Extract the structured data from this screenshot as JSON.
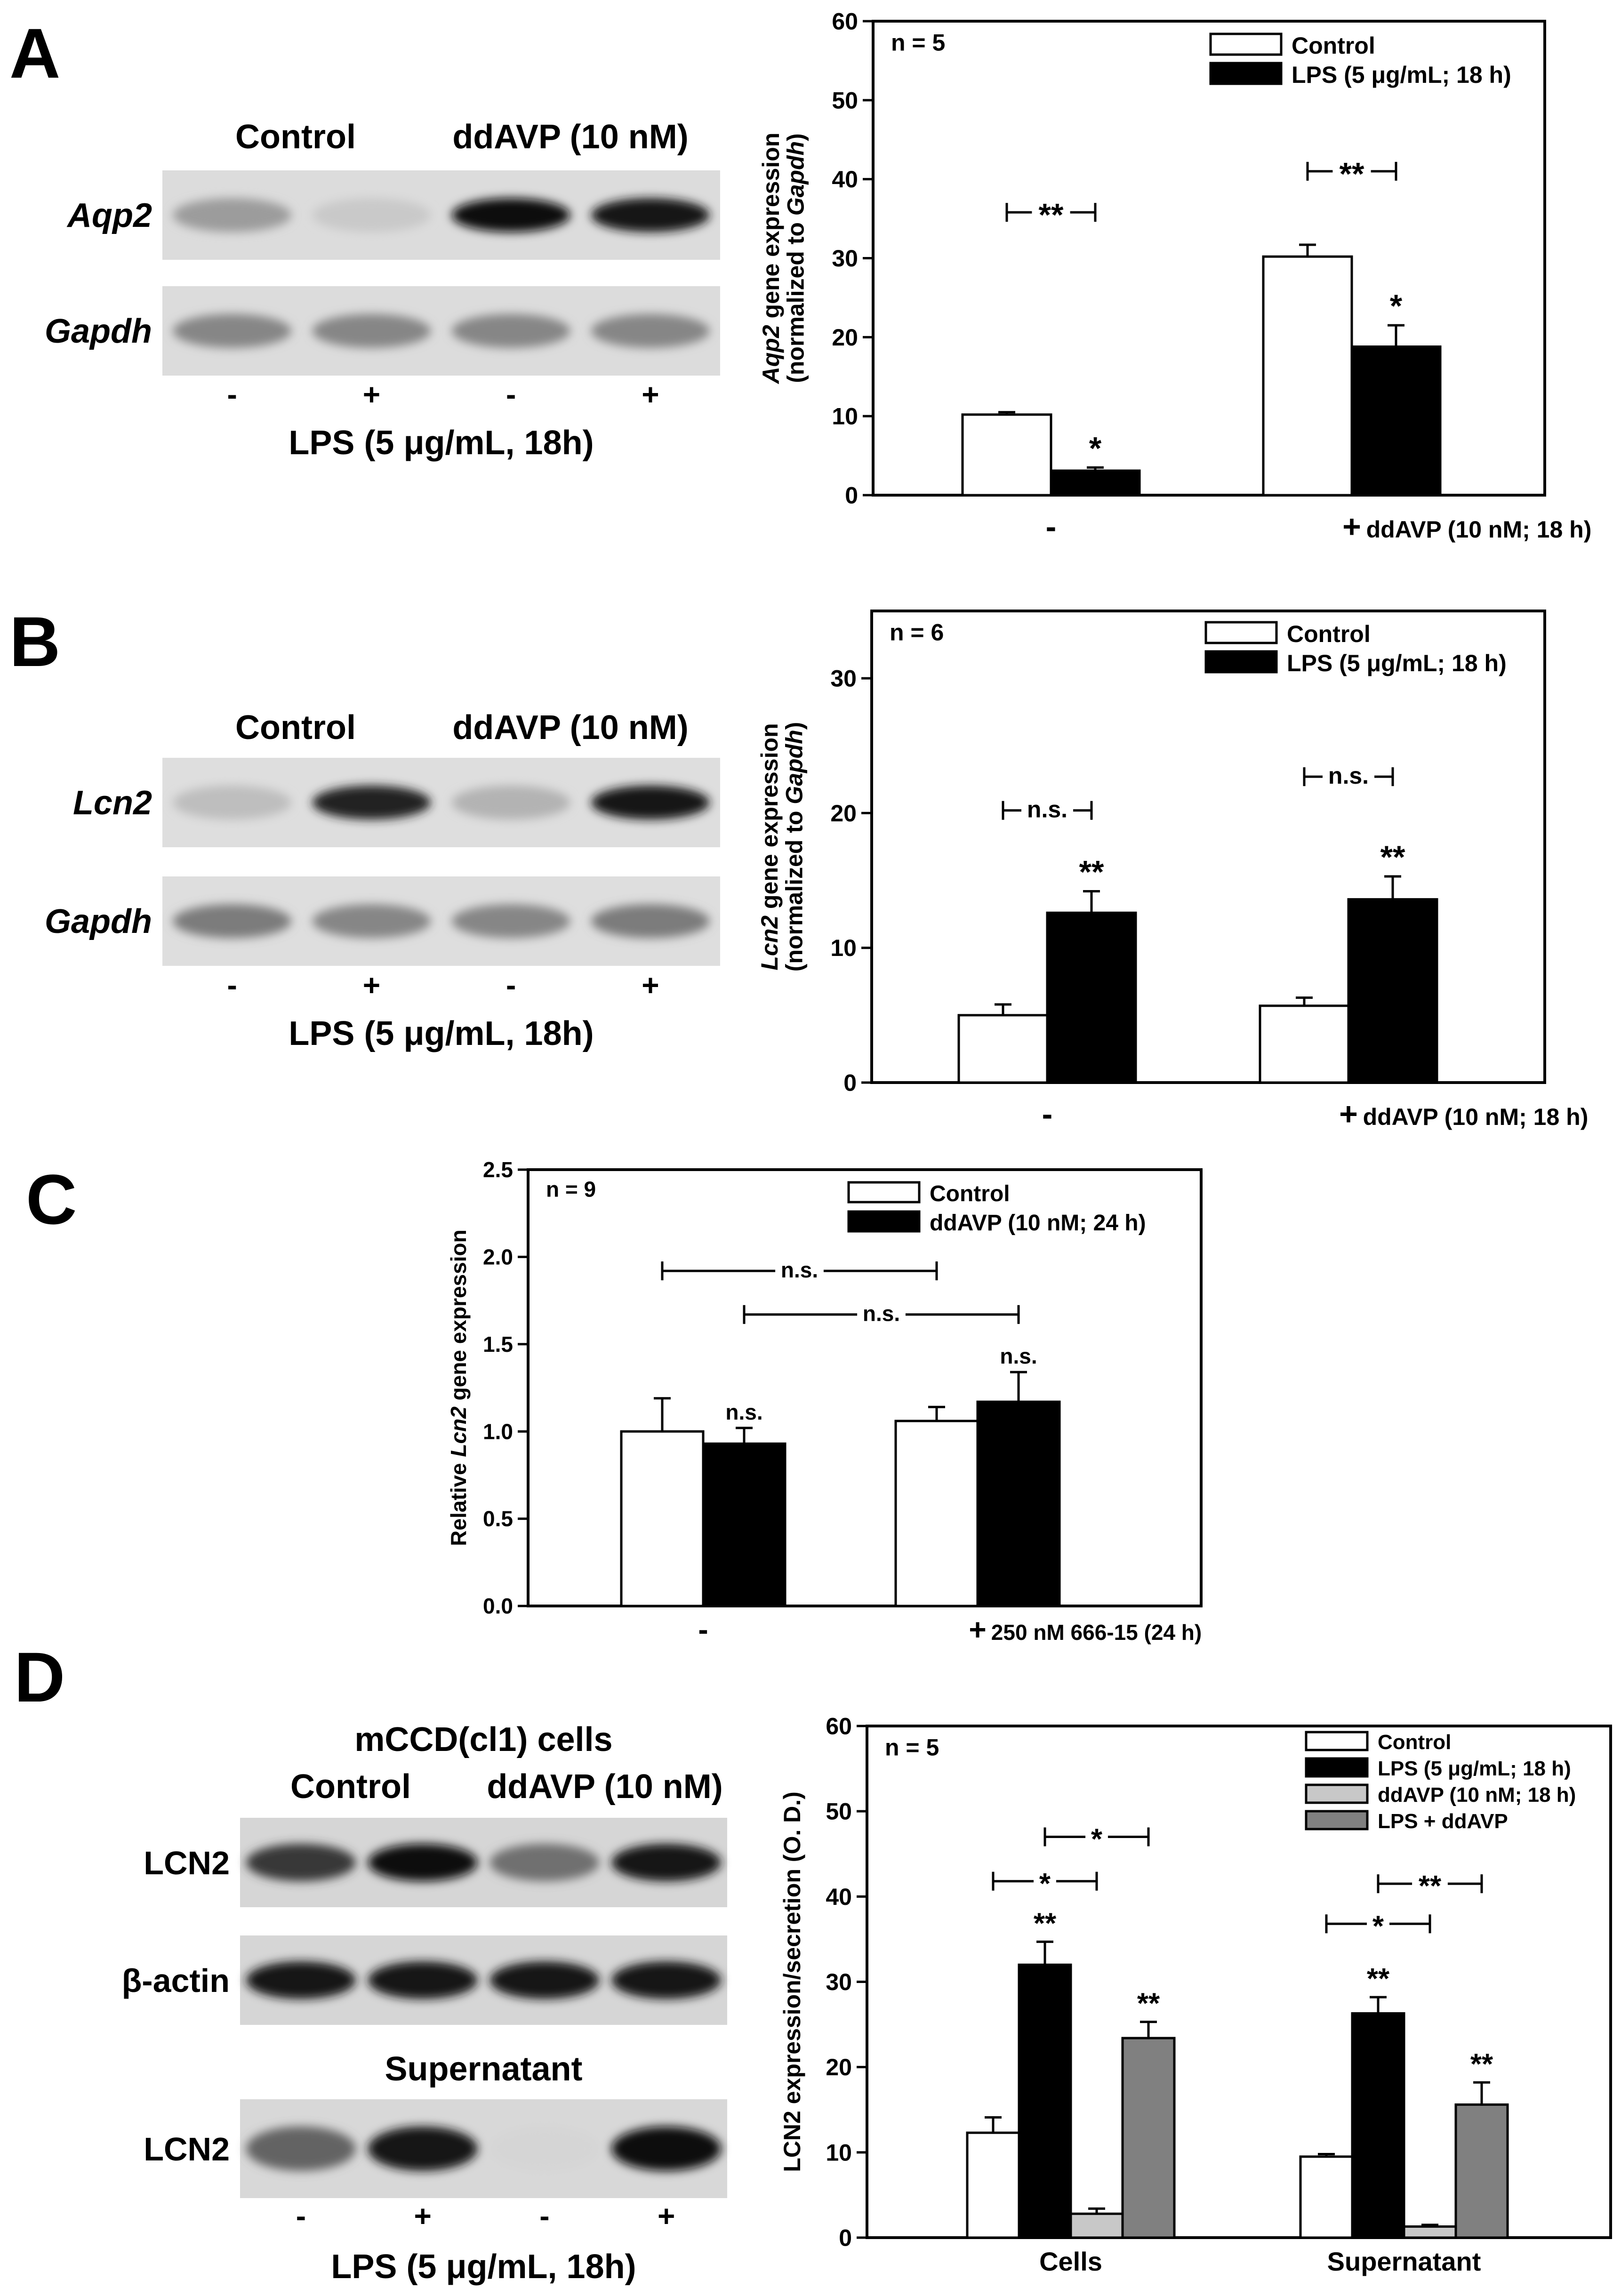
{
  "panels": [
    {
      "letter": "A",
      "gel": {
        "groups": [
          "Control",
          "ddAVP (10 nM)"
        ],
        "lanes": [
          {
            "sign": "-"
          },
          {
            "sign": "+"
          },
          {
            "sign": "-"
          },
          {
            "sign": "+"
          }
        ],
        "rows": [
          {
            "label": "Aqp2",
            "italic": true,
            "intensity": [
              0.35,
              0.15,
              1.0,
              0.95
            ]
          },
          {
            "label": "Gapdh",
            "italic": true,
            "intensity": [
              0.45,
              0.45,
              0.45,
              0.45
            ]
          }
        ],
        "axis_label": "LPS (5 μg/mL, 18h)"
      }
    },
    {
      "letter": "B",
      "gel": {
        "groups": [
          "Control",
          "ddAVP (10 nM)"
        ],
        "lanes": [
          {
            "sign": "-"
          },
          {
            "sign": "+"
          },
          {
            "sign": "-"
          },
          {
            "sign": "+"
          }
        ],
        "rows": [
          {
            "label": "Lcn2",
            "italic": true,
            "intensity": [
              0.2,
              0.9,
              0.25,
              0.95
            ]
          },
          {
            "label": "Gapdh",
            "italic": true,
            "intensity": [
              0.5,
              0.45,
              0.45,
              0.5
            ]
          }
        ],
        "axis_label": "LPS (5 μg/mL, 18h)"
      }
    },
    {
      "letter": "C"
    },
    {
      "letter": "D",
      "blot": {
        "title": "mCCD(cl1) cells",
        "groups": [
          "Control",
          "ddAVP (10 nM)"
        ],
        "rows": [
          {
            "label": "LCN2",
            "italic": false,
            "intensity": [
              0.8,
              1.0,
              0.55,
              0.95
            ]
          },
          {
            "label": "β-actin",
            "italic": false,
            "intensity": [
              0.95,
              0.95,
              0.95,
              0.95
            ]
          }
        ],
        "supernatant_title": "Supernatant",
        "supernatant_row": {
          "label": "LCN2",
          "italic": false,
          "intensity": [
            0.6,
            0.95,
            0.1,
            1.0
          ]
        },
        "lanes": [
          {
            "sign": "-"
          },
          {
            "sign": "+"
          },
          {
            "sign": "-"
          },
          {
            "sign": "+"
          }
        ],
        "axis_label": "LPS (5 μg/mL, 18h)"
      }
    }
  ],
  "chart_data": [
    {
      "panel": "A",
      "type": "bar",
      "n_label": "n = 5",
      "ylabel_parts": [
        {
          "text": "Aqp2",
          "italic": true
        },
        {
          "text": " gene expression",
          "italic": false
        }
      ],
      "ylabel2_parts": [
        {
          "text": "(normalized to ",
          "italic": false
        },
        {
          "text": "Gapdh",
          "italic": true
        },
        {
          "text": ")",
          "italic": false
        }
      ],
      "ylim": [
        0,
        60
      ],
      "yticks": [
        0,
        10,
        20,
        30,
        40,
        50,
        60
      ],
      "categories": [
        "-",
        "+"
      ],
      "category_suffix": [
        "",
        "ddAVP (10 nM; 18 h)"
      ],
      "series": [
        {
          "name": "Control",
          "color": "#ffffff",
          "values": [
            10.2,
            30.2
          ],
          "errors": [
            0.3,
            1.5
          ],
          "marks": [
            "",
            ""
          ]
        },
        {
          "name": "LPS (5 μg/mL; 18 h)",
          "color": "#000000",
          "values": [
            3.1,
            18.8
          ],
          "errors": [
            0.4,
            2.7
          ],
          "marks": [
            "*",
            "*"
          ]
        }
      ],
      "brackets": [
        {
          "from": [
            1,
            0
          ],
          "to": [
            1,
            1
          ],
          "y": 41,
          "label": "**"
        },
        {
          "from": [
            0,
            0
          ],
          "to": [
            0,
            1
          ],
          "y": 35.8,
          "label": "**"
        }
      ]
    },
    {
      "panel": "B",
      "type": "bar",
      "n_label": "n = 6",
      "ylabel_parts": [
        {
          "text": "Lcn2",
          "italic": true
        },
        {
          "text": " gene expression",
          "italic": false
        }
      ],
      "ylabel2_parts": [
        {
          "text": "(normalized to ",
          "italic": false
        },
        {
          "text": "Gapdh",
          "italic": true
        },
        {
          "text": ")",
          "italic": false
        }
      ],
      "ylim": [
        0,
        35
      ],
      "yticks": [
        0,
        10,
        20,
        30
      ],
      "categories": [
        "-",
        "+"
      ],
      "category_suffix": [
        "",
        "ddAVP (10 nM; 18 h)"
      ],
      "series": [
        {
          "name": "Control",
          "color": "#ffffff",
          "values": [
            5.0,
            5.7
          ],
          "errors": [
            0.8,
            0.6
          ],
          "marks": [
            "",
            ""
          ]
        },
        {
          "name": "LPS (5 μg/mL; 18 h)",
          "color": "#000000",
          "values": [
            12.6,
            13.6
          ],
          "errors": [
            1.6,
            1.7
          ],
          "marks": [
            "**",
            "**"
          ]
        }
      ],
      "brackets": [
        {
          "from": [
            1,
            0
          ],
          "to": [
            1,
            1
          ],
          "y": 22.7,
          "label": "n.s."
        },
        {
          "from": [
            0,
            0
          ],
          "to": [
            0,
            1
          ],
          "y": 20.2,
          "label": "n.s."
        }
      ]
    },
    {
      "panel": "C",
      "type": "bar",
      "n_label": "n = 9",
      "ylabel_parts": [
        {
          "text": "Relative ",
          "italic": false
        },
        {
          "text": "Lcn2",
          "italic": true
        },
        {
          "text": " gene expression",
          "italic": false
        }
      ],
      "ylabel2_parts": [],
      "ylim": [
        0,
        2.5
      ],
      "yticks": [
        0.0,
        0.5,
        1.0,
        1.5,
        2.0,
        2.5
      ],
      "ytick_labels": [
        "0.0",
        "0.5",
        "1.0",
        "1.5",
        "2.0",
        "2.5"
      ],
      "categories": [
        "-",
        "+"
      ],
      "category_suffix": [
        "",
        "250 nM 666-15 (24 h)"
      ],
      "series": [
        {
          "name": "Control",
          "color": "#ffffff",
          "values": [
            1.0,
            1.06
          ],
          "errors": [
            0.19,
            0.08
          ],
          "marks": [
            "",
            ""
          ]
        },
        {
          "name": "ddAVP (10 nM; 24 h)",
          "color": "#000000",
          "values": [
            0.93,
            1.17
          ],
          "errors": [
            0.09,
            0.17
          ],
          "marks": [
            "n.s.",
            "n.s."
          ]
        }
      ],
      "brackets": [
        {
          "from": [
            0,
            0
          ],
          "to": [
            1,
            0
          ],
          "y": 1.92,
          "label": "n.s."
        },
        {
          "from": [
            0,
            1
          ],
          "to": [
            1,
            1
          ],
          "y": 1.67,
          "label": "n.s."
        }
      ]
    },
    {
      "panel": "D",
      "type": "bar",
      "n_label": "n = 5",
      "ylabel_parts": [
        {
          "text": "LCN2 expression/secretion (O. D.)",
          "italic": false
        }
      ],
      "ylabel2_parts": [],
      "ylim": [
        0,
        60
      ],
      "yticks": [
        0,
        10,
        20,
        30,
        40,
        50,
        60
      ],
      "categories": [
        "Cells",
        "Supernatant"
      ],
      "category_suffix": [
        "",
        ""
      ],
      "series": [
        {
          "name": "Control",
          "color": "#ffffff",
          "values": [
            12.3,
            9.5
          ],
          "errors": [
            1.8,
            0.3
          ],
          "marks": [
            "",
            ""
          ]
        },
        {
          "name": "LPS (5 μg/mL; 18 h)",
          "color": "#000000",
          "values": [
            32.0,
            26.3
          ],
          "errors": [
            2.7,
            1.9
          ],
          "marks": [
            "**",
            "**"
          ]
        },
        {
          "name": "ddAVP (10 nM; 18 h)",
          "color": "#c8c8c8",
          "values": [
            2.8,
            1.3
          ],
          "errors": [
            0.6,
            0.2
          ],
          "marks": [
            "",
            ""
          ]
        },
        {
          "name": "LPS + ddAVP",
          "color": "#808080",
          "values": [
            23.4,
            15.6
          ],
          "errors": [
            1.9,
            2.6
          ],
          "marks": [
            "**",
            "**"
          ]
        }
      ],
      "brackets": [
        {
          "from": [
            0,
            1
          ],
          "to": [
            0,
            3
          ],
          "y": 47,
          "label": "*"
        },
        {
          "from": [
            0,
            0
          ],
          "to": [
            0,
            2
          ],
          "y": 41.8,
          "label": "*"
        },
        {
          "from": [
            1,
            1
          ],
          "to": [
            1,
            3
          ],
          "y": 41.5,
          "label": "**"
        },
        {
          "from": [
            1,
            0
          ],
          "to": [
            1,
            2
          ],
          "y": 36.8,
          "label": "*"
        }
      ]
    }
  ]
}
